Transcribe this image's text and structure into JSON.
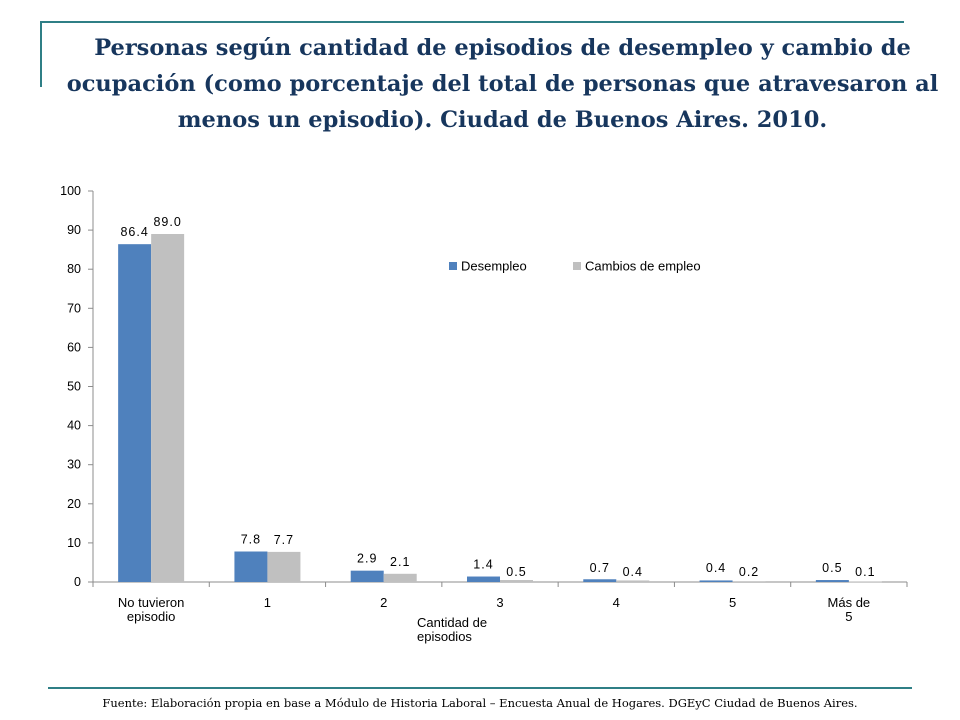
{
  "title": "Personas según cantidad de episodios de desempleo y cambio de ocupación (como porcentaje del total de personas que atravesaron al menos un episodio). Ciudad de Buenos Aires. 2010.",
  "footer": "Fuente: Elaboración propia en base a Módulo de Historia Laboral – Encuesta Anual de Hogares. DGEyC Ciudad de Buenos Aires.",
  "chart_data": {
    "type": "bar",
    "categories": [
      "No tuvieron episodio",
      "1",
      "2",
      "3",
      "4",
      "5",
      "Más de 5"
    ],
    "series": [
      {
        "name": "Desempleo",
        "values": [
          86.4,
          7.8,
          2.9,
          1.4,
          0.7,
          0.4,
          0.5
        ],
        "labels": [
          "86.4",
          "7.8",
          "2.9",
          "1.4",
          "0.7",
          "0.4",
          "0.5"
        ],
        "color": "#4f81bd"
      },
      {
        "name": "Cambios de empleo",
        "values": [
          89.0,
          7.7,
          2.1,
          0.5,
          0.4,
          0.2,
          0.1
        ],
        "labels": [
          "89.0",
          "7.7",
          "2.1",
          "0.5",
          "0.4",
          "0.2",
          "0.1"
        ],
        "color": "#c0c0c0"
      }
    ],
    "xlabel": "Cantidad de episodios",
    "ylabel": "",
    "ylim": [
      0,
      100
    ],
    "yticks": [
      0,
      10,
      20,
      30,
      40,
      50,
      60,
      70,
      80,
      90,
      100
    ],
    "grid": false,
    "legend": "top-right"
  }
}
